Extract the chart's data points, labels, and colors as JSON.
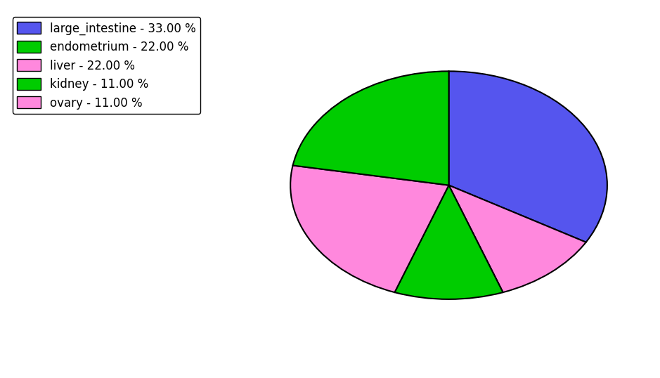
{
  "labels": [
    "large_intestine",
    "ovary",
    "kidney",
    "liver",
    "endometrium"
  ],
  "values": [
    33.0,
    11.0,
    11.0,
    22.0,
    22.0
  ],
  "colors": [
    "#5555ee",
    "#ff88dd",
    "#00cc00",
    "#ff88dd",
    "#00cc00"
  ],
  "legend_labels": [
    "large_intestine - 33.00 %",
    "endometrium - 22.00 %",
    "liver - 22.00 %",
    "kidney - 11.00 %",
    "ovary - 11.00 %"
  ],
  "legend_colors": [
    "#5555ee",
    "#00cc00",
    "#ff88dd",
    "#00cc00",
    "#ff88dd"
  ],
  "startangle": 90,
  "background_color": "#ffffff",
  "figsize": [
    9.39,
    5.38
  ],
  "dpi": 100
}
